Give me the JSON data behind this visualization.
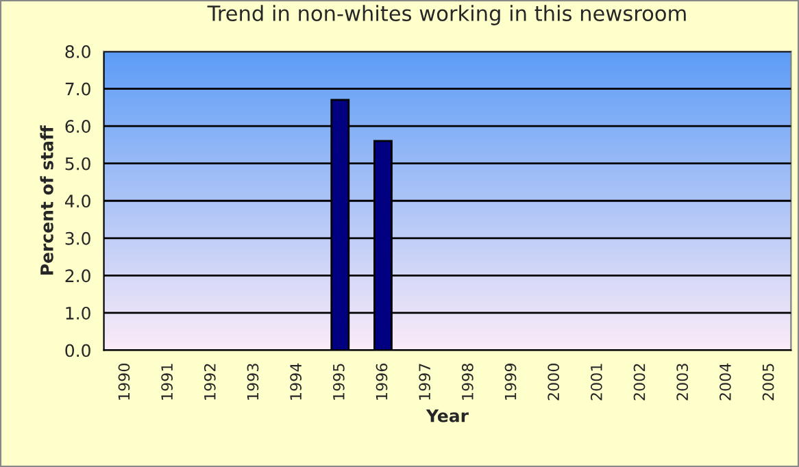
{
  "chart_data": {
    "type": "bar",
    "title": "Trend in non-whites working in this newsroom",
    "xlabel": "Year",
    "ylabel": "Percent of staff",
    "categories": [
      "1990",
      "1991",
      "1992",
      "1993",
      "1994",
      "1995",
      "1996",
      "1997",
      "1998",
      "1999",
      "2000",
      "2001",
      "2002",
      "2003",
      "2004",
      "2005"
    ],
    "values": [
      null,
      null,
      null,
      null,
      null,
      6.7,
      5.6,
      null,
      null,
      null,
      null,
      null,
      null,
      null,
      null,
      null
    ],
    "color": "#000080",
    "ylim": [
      0,
      8
    ],
    "yticks": [
      {
        "value": 0,
        "label": "0.0"
      },
      {
        "value": 1,
        "label": "1.0"
      },
      {
        "value": 2,
        "label": "2.0"
      },
      {
        "value": 3,
        "label": "3.0"
      },
      {
        "value": 4,
        "label": "4.0"
      },
      {
        "value": 5,
        "label": "5.0"
      },
      {
        "value": 6,
        "label": "6.0"
      },
      {
        "value": 7,
        "label": "7.0"
      },
      {
        "value": 8,
        "label": "8.0"
      }
    ],
    "grid": "y",
    "legend": false
  }
}
